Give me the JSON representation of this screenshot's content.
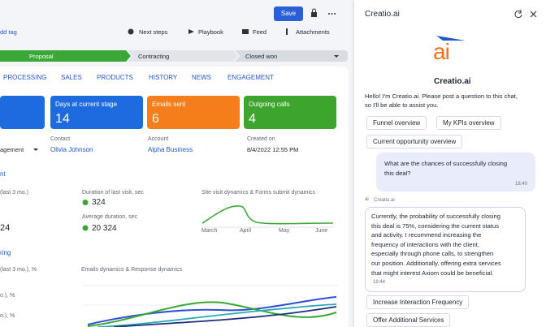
{
  "toolbar": {
    "save": "Save",
    "tag": "dd tag",
    "actions": [
      "Next steps",
      "Playbook",
      "Feed",
      "Attachments"
    ]
  },
  "stages": [
    "Proposal",
    "Contracting",
    "Closed won"
  ],
  "tabs": [
    "PROCESSING",
    "SALES",
    "PRODUCTS",
    "HISTORY",
    "NEWS",
    "ENGAGEMENT"
  ],
  "cards": [
    {
      "label": "Days at current stage",
      "value": 14
    },
    {
      "label": "Emails sent",
      "value": 6
    },
    {
      "label": "Outgoing calls",
      "value": 4
    }
  ],
  "fields": {
    "owner": "agement",
    "items": [
      {
        "label": "Contact",
        "value": "Olivia Johnson"
      },
      {
        "label": "Account",
        "value": "Alpha Business"
      },
      {
        "label": "Created on",
        "value": "8/4/2022 12:55 PM"
      }
    ]
  },
  "visits": {
    "title": "nt",
    "metric_label": "(last 3 mo.)",
    "metric_value": 24,
    "duration_label": "Duration of last visit, sec",
    "duration_value": 324,
    "average_label": "Average duration, sec",
    "average_value": "20 324",
    "chart_title": "Site visit dynamics & Forms submit dynamics",
    "months": [
      "March",
      "April",
      "May",
      "June"
    ]
  },
  "emailing": {
    "title": "ring",
    "labels": [
      "(last 3 mo.), %",
      "o.), %",
      "o.), %"
    ],
    "chart_title": "Emails dynamics & Response dynamics"
  },
  "chat": {
    "header": "Creatio.ai",
    "logo": "ai",
    "name": "Creatio.ai",
    "greeting": [
      "Hello! I'm Creatio.ai. Please post a question to this chat,",
      "so I'll be able to assist you."
    ],
    "suggestions": [
      "Funnel overview",
      "My KPIs overview",
      "Current opportunity overview"
    ],
    "user_message": {
      "lines": [
        "What are the chances of successfully closing",
        "this deal?"
      ],
      "time": "18:40"
    },
    "sender": "Creatio.ai",
    "ai_message": {
      "lines": [
        "Currently, the probability of successfully closing",
        "this deal is 75%, considering the current status",
        "and activity. I recommend increasing the",
        "frequency of interactions with the client,",
        "especially through phone calls, to strengthen",
        "our position. Additionally, offering extra services",
        "that might interest Axiom could be beneficial."
      ],
      "time": "18:44"
    },
    "actions": [
      "Increase Interaction Frequency",
      "Offer Additional Services"
    ]
  }
}
